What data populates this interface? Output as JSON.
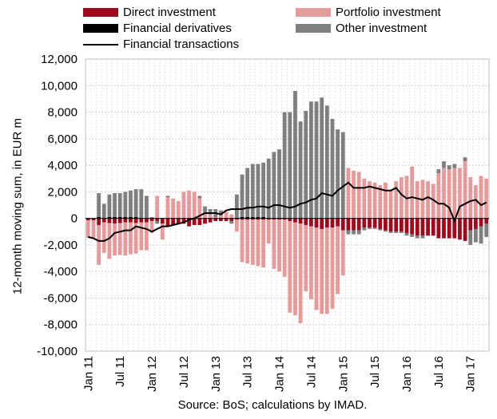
{
  "chart_data": {
    "type": "bar",
    "stacked": true,
    "ylabel": "12-month moving sum, in EUR m",
    "ylim": [
      -10000,
      12000
    ],
    "yticks": [
      -10000,
      -8000,
      -6000,
      -4000,
      -2000,
      0,
      2000,
      4000,
      6000,
      8000,
      10000,
      12000
    ],
    "ytick_labels": [
      "-10,000",
      "-8,000",
      "-6,000",
      "-4,000",
      "-2,000",
      "0",
      "2,000",
      "4,000",
      "6,000",
      "8,000",
      "10,000",
      "12,000"
    ],
    "xtick_labels": [
      "Jan 11",
      "Jul 11",
      "Jan 12",
      "Jul 12",
      "Jan 13",
      "Jul 13",
      "Jan 14",
      "Jul 14",
      "Jan 15",
      "Jul 15",
      "Jan 16",
      "Jul 16",
      "Jan 17"
    ],
    "xtick_indices": [
      0,
      6,
      12,
      18,
      24,
      30,
      36,
      42,
      48,
      54,
      60,
      66,
      72
    ],
    "grid": true,
    "legend_position": "top",
    "categories": [
      "2011-01",
      "2011-02",
      "2011-03",
      "2011-04",
      "2011-05",
      "2011-06",
      "2011-07",
      "2011-08",
      "2011-09",
      "2011-10",
      "2011-11",
      "2011-12",
      "2012-01",
      "2012-02",
      "2012-03",
      "2012-04",
      "2012-05",
      "2012-06",
      "2012-07",
      "2012-08",
      "2012-09",
      "2012-10",
      "2012-11",
      "2012-12",
      "2013-01",
      "2013-02",
      "2013-03",
      "2013-04",
      "2013-05",
      "2013-06",
      "2013-07",
      "2013-08",
      "2013-09",
      "2013-10",
      "2013-11",
      "2013-12",
      "2014-01",
      "2014-02",
      "2014-03",
      "2014-04",
      "2014-05",
      "2014-06",
      "2014-07",
      "2014-08",
      "2014-09",
      "2014-10",
      "2014-11",
      "2014-12",
      "2015-01",
      "2015-02",
      "2015-03",
      "2015-04",
      "2015-05",
      "2015-06",
      "2015-07",
      "2015-08",
      "2015-09",
      "2015-10",
      "2015-11",
      "2015-12",
      "2016-01",
      "2016-02",
      "2016-03",
      "2016-04",
      "2016-05",
      "2016-06",
      "2016-07",
      "2016-08",
      "2016-09",
      "2016-10",
      "2016-11",
      "2016-12",
      "2017-01",
      "2017-02",
      "2017-03",
      "2017-04"
    ],
    "series": [
      {
        "name": "Direct investment",
        "type": "bar",
        "color": "#9c0a1e",
        "values": [
          -150,
          -150,
          -500,
          -300,
          -350,
          -400,
          -350,
          -300,
          -300,
          -350,
          -300,
          -300,
          -200,
          -200,
          -400,
          -600,
          -500,
          -400,
          -400,
          -600,
          -500,
          -500,
          -400,
          -300,
          -200,
          -200,
          -200,
          -200,
          -100,
          -100,
          -100,
          -100,
          -100,
          -100,
          -100,
          -100,
          -100,
          -100,
          -200,
          -300,
          -400,
          -500,
          -600,
          -700,
          -800,
          -700,
          -700,
          -600,
          -900,
          -900,
          -900,
          -900,
          -700,
          -700,
          -700,
          -800,
          -900,
          -1000,
          -1000,
          -1000,
          -1100,
          -1200,
          -1300,
          -1300,
          -1300,
          -1300,
          -1500,
          -1500,
          -1500,
          -1500,
          -1600,
          -1700,
          -900,
          -800,
          -600,
          -400
        ]
      },
      {
        "name": "Portfolio investment",
        "type": "bar",
        "color": "#e49b9b",
        "values": [
          -1300,
          -1300,
          -3000,
          -2300,
          -2700,
          -2400,
          -2400,
          -2500,
          -2400,
          -2300,
          -2100,
          -2100,
          -900,
          1700,
          -1200,
          1600,
          1500,
          1300,
          2000,
          2100,
          2000,
          1500,
          300,
          300,
          100,
          200,
          500,
          300,
          -900,
          -3200,
          -3300,
          -3400,
          -3500,
          -3600,
          -1800,
          -3700,
          -3900,
          -4300,
          -6900,
          -7000,
          -7500,
          -5000,
          -5500,
          -6200,
          -6400,
          -6500,
          -6100,
          -5100,
          -3400,
          3800,
          3600,
          3500,
          3000,
          2800,
          2700,
          2500,
          2700,
          2100,
          2800,
          3100,
          3200,
          3900,
          2800,
          2900,
          2800,
          2600,
          3400,
          3800,
          3700,
          3800,
          3800,
          4300,
          3100,
          2500,
          3200,
          3000
        ]
      },
      {
        "name": "Financial derivatives",
        "type": "bar",
        "color": "#000000",
        "values": [
          0,
          0,
          100,
          0,
          100,
          100,
          100,
          100,
          100,
          100,
          0,
          0,
          0,
          0,
          0,
          0,
          0,
          0,
          0,
          0,
          0,
          0,
          0,
          0,
          0,
          0,
          0,
          0,
          0,
          100,
          100,
          100,
          100,
          100,
          0,
          0,
          0,
          0,
          0,
          0,
          0,
          0,
          0,
          0,
          0,
          0,
          0,
          0,
          0,
          0,
          0,
          0,
          0,
          0,
          0,
          0,
          0,
          0,
          0,
          0,
          0,
          0,
          0,
          0,
          0,
          0,
          0,
          0,
          0,
          0,
          0,
          0,
          0,
          0,
          0,
          0
        ]
      },
      {
        "name": "Other investment",
        "type": "bar",
        "color": "#7f7f7f",
        "values": [
          0,
          0,
          1800,
          1100,
          1700,
          1800,
          1800,
          1900,
          2000,
          2100,
          2200,
          1700,
          100,
          -200,
          0,
          100,
          0,
          0,
          0,
          0,
          0,
          200,
          600,
          400,
          600,
          400,
          0,
          -200,
          1800,
          3200,
          3700,
          4000,
          4000,
          4100,
          4500,
          5000,
          5200,
          8000,
          8000,
          9600,
          7300,
          8100,
          8800,
          8800,
          9100,
          8500,
          7500,
          6700,
          6500,
          -300,
          -300,
          -300,
          -200,
          -100,
          -100,
          -100,
          -100,
          -100,
          -100,
          -100,
          -200,
          -200,
          -200,
          -200,
          0,
          0,
          300,
          500,
          300,
          300,
          0,
          300,
          -1100,
          -1000,
          -1300,
          -1000
        ]
      },
      {
        "name": "Financial transactions",
        "type": "line",
        "color": "#000000",
        "values": [
          -1400,
          -1500,
          -1700,
          -1700,
          -1500,
          -1100,
          -1000,
          -900,
          -900,
          -600,
          -700,
          -800,
          -1000,
          -800,
          -600,
          -600,
          -500,
          -400,
          -300,
          -100,
          0,
          200,
          400,
          400,
          400,
          300,
          600,
          700,
          700,
          700,
          800,
          800,
          900,
          900,
          800,
          1000,
          1000,
          900,
          800,
          900,
          1100,
          1200,
          1400,
          1500,
          1900,
          1800,
          1700,
          2100,
          2400,
          2700,
          2300,
          2300,
          2300,
          2400,
          2300,
          2200,
          2100,
          2100,
          2300,
          1800,
          1500,
          1600,
          1500,
          1400,
          1600,
          1400,
          1100,
          1100,
          800,
          -200,
          900,
          1100,
          1300,
          1400,
          1000,
          1200
        ]
      }
    ],
    "legend": [
      "Direct investment",
      "Portfolio investment",
      "Financial derivatives",
      "Other investment",
      "Financial transactions"
    ]
  },
  "source_note": "Source: BoS; calculations by IMAD."
}
